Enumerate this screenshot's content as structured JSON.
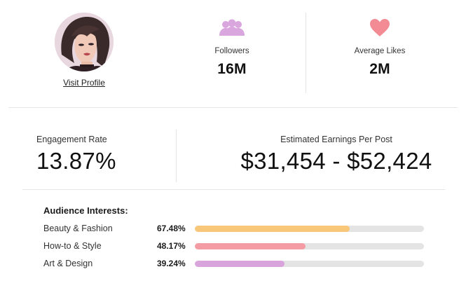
{
  "profile": {
    "visit_label": "Visit Profile"
  },
  "stats": {
    "followers": {
      "label": "Followers",
      "value": "16M",
      "icon": "followers-icon",
      "color": "#d9a6de"
    },
    "average_likes": {
      "label": "Average Likes",
      "value": "2M",
      "icon": "heart-icon",
      "color": "#f28b94"
    }
  },
  "engagement": {
    "label": "Engagement Rate",
    "value": "13.87%"
  },
  "earnings": {
    "label": "Estimated Earnings Per Post",
    "value": "$31,454 - $52,424"
  },
  "interests": {
    "title": "Audience Interests:",
    "items": [
      {
        "name": "Beauty & Fashion",
        "percent_label": "67.48%",
        "percent": 67.48,
        "color": "#f9c77a"
      },
      {
        "name": "How-to & Style",
        "percent_label": "48.17%",
        "percent": 48.17,
        "color": "#f39ca4"
      },
      {
        "name": "Art & Design",
        "percent_label": "39.24%",
        "percent": 39.24,
        "color": "#d9a4dc"
      }
    ]
  }
}
